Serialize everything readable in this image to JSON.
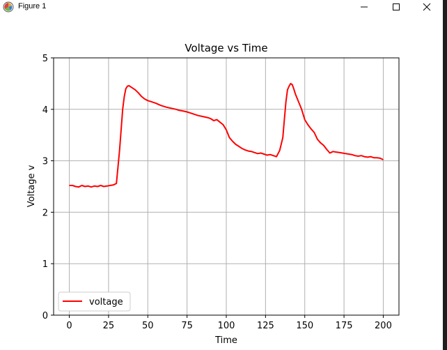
{
  "window": {
    "title": "Figure 1",
    "controls": {
      "minimize": "minimize-icon",
      "maximize": "maximize-icon",
      "close": "close-icon"
    }
  },
  "chart_data": {
    "type": "line",
    "title": "Voltage vs Time",
    "xlabel": "Time",
    "ylabel": "Voltage v",
    "xlim": [
      -10,
      210
    ],
    "ylim": [
      0,
      5
    ],
    "xticks": [
      0,
      25,
      50,
      75,
      100,
      125,
      150,
      175,
      200
    ],
    "yticks": [
      0,
      1,
      2,
      3,
      4,
      5
    ],
    "grid": true,
    "legend_position": "lower-left",
    "series": [
      {
        "name": "voltage",
        "color": "#ff0000",
        "x": [
          0,
          2,
          4,
          6,
          8,
          10,
          12,
          14,
          16,
          18,
          20,
          22,
          24,
          26,
          28,
          30,
          32,
          34,
          35,
          36,
          37,
          38,
          40,
          42,
          44,
          46,
          48,
          50,
          52,
          55,
          58,
          60,
          62,
          65,
          68,
          70,
          72,
          75,
          78,
          80,
          82,
          85,
          88,
          90,
          92,
          94,
          96,
          98,
          100,
          102,
          104,
          106,
          108,
          110,
          112,
          114,
          116,
          118,
          120,
          122,
          124,
          126,
          128,
          130,
          132,
          134,
          136,
          137,
          138,
          139,
          140,
          141,
          142,
          143,
          144,
          146,
          148,
          150,
          152,
          154,
          156,
          158,
          160,
          162,
          164,
          166,
          168,
          170,
          172,
          174,
          176,
          178,
          180,
          182,
          184,
          186,
          188,
          190,
          192,
          194,
          196,
          198,
          200
        ],
        "y": [
          2.52,
          2.52,
          2.5,
          2.49,
          2.52,
          2.5,
          2.51,
          2.49,
          2.51,
          2.5,
          2.52,
          2.5,
          2.51,
          2.52,
          2.53,
          2.56,
          3.2,
          4.0,
          4.25,
          4.4,
          4.45,
          4.46,
          4.42,
          4.38,
          4.32,
          4.25,
          4.2,
          4.17,
          4.15,
          4.12,
          4.08,
          4.06,
          4.04,
          4.02,
          4.0,
          3.98,
          3.97,
          3.95,
          3.92,
          3.9,
          3.88,
          3.86,
          3.84,
          3.82,
          3.78,
          3.8,
          3.75,
          3.7,
          3.6,
          3.45,
          3.38,
          3.32,
          3.28,
          3.24,
          3.21,
          3.19,
          3.18,
          3.16,
          3.14,
          3.15,
          3.13,
          3.11,
          3.12,
          3.1,
          3.08,
          3.2,
          3.45,
          3.8,
          4.15,
          4.38,
          4.45,
          4.5,
          4.48,
          4.4,
          4.3,
          4.15,
          4.0,
          3.8,
          3.7,
          3.62,
          3.55,
          3.42,
          3.35,
          3.3,
          3.22,
          3.15,
          3.18,
          3.17,
          3.16,
          3.15,
          3.14,
          3.13,
          3.12,
          3.1,
          3.09,
          3.1,
          3.08,
          3.07,
          3.08,
          3.06,
          3.06,
          3.05,
          3.02
        ]
      }
    ]
  }
}
